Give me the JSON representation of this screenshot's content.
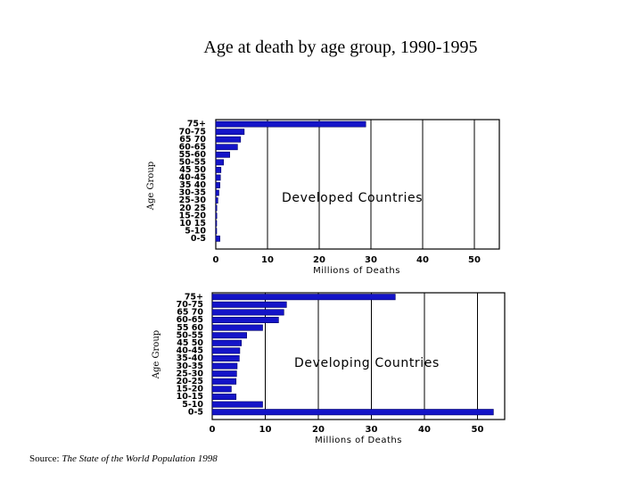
{
  "title": "Age at death by age group, 1990-1995",
  "source": {
    "label": "Source:",
    "work": "The State of the World Population 1998"
  },
  "colors": {
    "bar": "#1414c8",
    "bar_edge": "#000066",
    "axis": "#000000"
  },
  "chart_data": [
    {
      "type": "bar",
      "orientation": "horizontal",
      "title": "Developed Countries",
      "xlabel": "Millions of Deaths",
      "ylabel": "Age Group",
      "xlim": [
        0,
        55
      ],
      "x_ticks": [
        0,
        10,
        20,
        30,
        40,
        50
      ],
      "grid": true,
      "categories": [
        "75+",
        "70-75",
        "65 70",
        "60-65",
        "55-60",
        "50-55",
        "45 50",
        "40-45",
        "35 40",
        "30-35",
        "25-30",
        "20 25",
        "15-20",
        "10 15",
        "5-10",
        "0-5"
      ],
      "values": [
        29,
        5.5,
        4.8,
        4.2,
        2.7,
        1.5,
        1.0,
        0.9,
        0.8,
        0.6,
        0.4,
        0.2,
        0.2,
        0.1,
        0.1,
        0.8
      ]
    },
    {
      "type": "bar",
      "orientation": "horizontal",
      "title": "Developing Countries",
      "xlabel": "Millions of Deaths",
      "ylabel": "Age Group",
      "xlim": [
        0,
        55
      ],
      "x_ticks": [
        0,
        10,
        20,
        30,
        40,
        50
      ],
      "grid": true,
      "categories": [
        "75+",
        "70-75",
        "65 70",
        "60-65",
        "55 60",
        "50-55",
        "45 50",
        "40-45",
        "35-40",
        "30-35",
        "25-30",
        "20-25",
        "15-20",
        "10-15",
        "5-10",
        "0-5"
      ],
      "values": [
        34.5,
        14,
        13.5,
        12.5,
        9.5,
        6.5,
        5.5,
        5.2,
        5.1,
        4.7,
        4.6,
        4.5,
        3.6,
        4.5,
        9.5,
        53
      ]
    }
  ]
}
